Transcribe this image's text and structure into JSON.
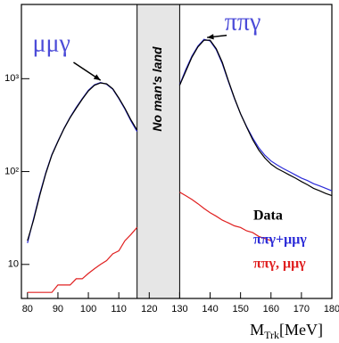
{
  "chart_data": {
    "type": "line",
    "x_label": {
      "main": "M",
      "sub": "Trk",
      "unit": "[MeV]"
    },
    "x": [
      80,
      82,
      84,
      86,
      88,
      90,
      92,
      94,
      96,
      98,
      100,
      102,
      104,
      106,
      108,
      110,
      112,
      114,
      116,
      118,
      120,
      122,
      124,
      126,
      128,
      130,
      132,
      134,
      136,
      138,
      140,
      142,
      144,
      146,
      148,
      150,
      152,
      154,
      156,
      158,
      160,
      162,
      164,
      166,
      168,
      170,
      172,
      174,
      176,
      178,
      180
    ],
    "series": [
      {
        "name": "Data",
        "color": "#000000",
        "values": [
          18,
          30,
          55,
          95,
          150,
          210,
          290,
          380,
          480,
          600,
          740,
          850,
          900,
          880,
          780,
          620,
          480,
          360,
          280,
          null,
          null,
          null,
          null,
          null,
          null,
          850,
          1200,
          1700,
          2200,
          2600,
          2600,
          2100,
          1500,
          950,
          620,
          420,
          300,
          220,
          170,
          140,
          120,
          108,
          100,
          92,
          85,
          78,
          72,
          66,
          62,
          58,
          55
        ]
      },
      {
        "name": "ππγ+μμγ",
        "color": "#2b2bd8",
        "values": [
          17,
          31,
          57,
          97,
          152,
          212,
          292,
          385,
          490,
          610,
          750,
          860,
          910,
          870,
          770,
          610,
          470,
          350,
          270,
          null,
          null,
          null,
          null,
          null,
          null,
          860,
          1250,
          1750,
          2250,
          2650,
          2550,
          2050,
          1450,
          930,
          610,
          420,
          305,
          230,
          180,
          150,
          130,
          118,
          108,
          100,
          92,
          85,
          80,
          74,
          70,
          66,
          62
        ]
      },
      {
        "name": "ππγ, μμγ",
        "color": "#e02020",
        "values": [
          5,
          5,
          5,
          5,
          5,
          6,
          6,
          6,
          7,
          7,
          8,
          9,
          10,
          11,
          13,
          14,
          18,
          21,
          25,
          null,
          null,
          null,
          null,
          null,
          null,
          60,
          55,
          50,
          45,
          40,
          36,
          33,
          30,
          28,
          26,
          25,
          23,
          22,
          20,
          19,
          18,
          null,
          null,
          null,
          null,
          null,
          null,
          null,
          null,
          null,
          null
        ]
      }
    ],
    "xlim": [
      78,
      180
    ],
    "xticks": [
      80,
      90,
      100,
      110,
      120,
      130,
      140,
      150,
      160,
      170,
      180
    ],
    "ylim": [
      4.3,
      6300
    ],
    "log_y": true,
    "yticks": [
      {
        "value": 10,
        "label": "10"
      },
      {
        "value": 100,
        "label": "10²"
      },
      {
        "value": 1000,
        "label": "10³"
      }
    ],
    "legend": "lower right",
    "annotations": [
      {
        "text": "μμγ",
        "x": 104,
        "y": 900
      },
      {
        "text": "ππγ",
        "x": 139,
        "y": 2600
      }
    ],
    "region": {
      "text": "No man's land",
      "xrange": [
        116,
        130
      ]
    }
  }
}
